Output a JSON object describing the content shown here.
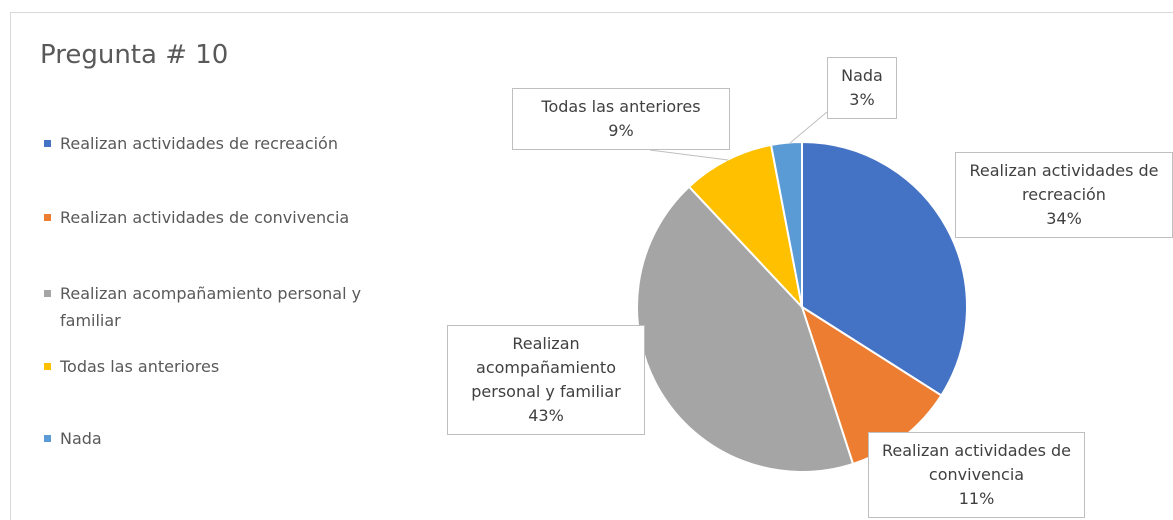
{
  "chart_data": {
    "type": "pie",
    "title": "Pregunta # 10",
    "categories": [
      "Realizan actividades de recreación",
      "Realizan actividades de convivencia",
      "Realizan acompañamiento personal y familiar",
      "Todas las anteriores",
      "Nada"
    ],
    "values": [
      34,
      11,
      43,
      9,
      3
    ],
    "value_labels": [
      "34%",
      "11%",
      "43%",
      "9%",
      "3%"
    ],
    "colors": [
      "#4472c4",
      "#ed7d31",
      "#a5a5a5",
      "#ffc000",
      "#5b9bd5"
    ],
    "legend": "left"
  }
}
